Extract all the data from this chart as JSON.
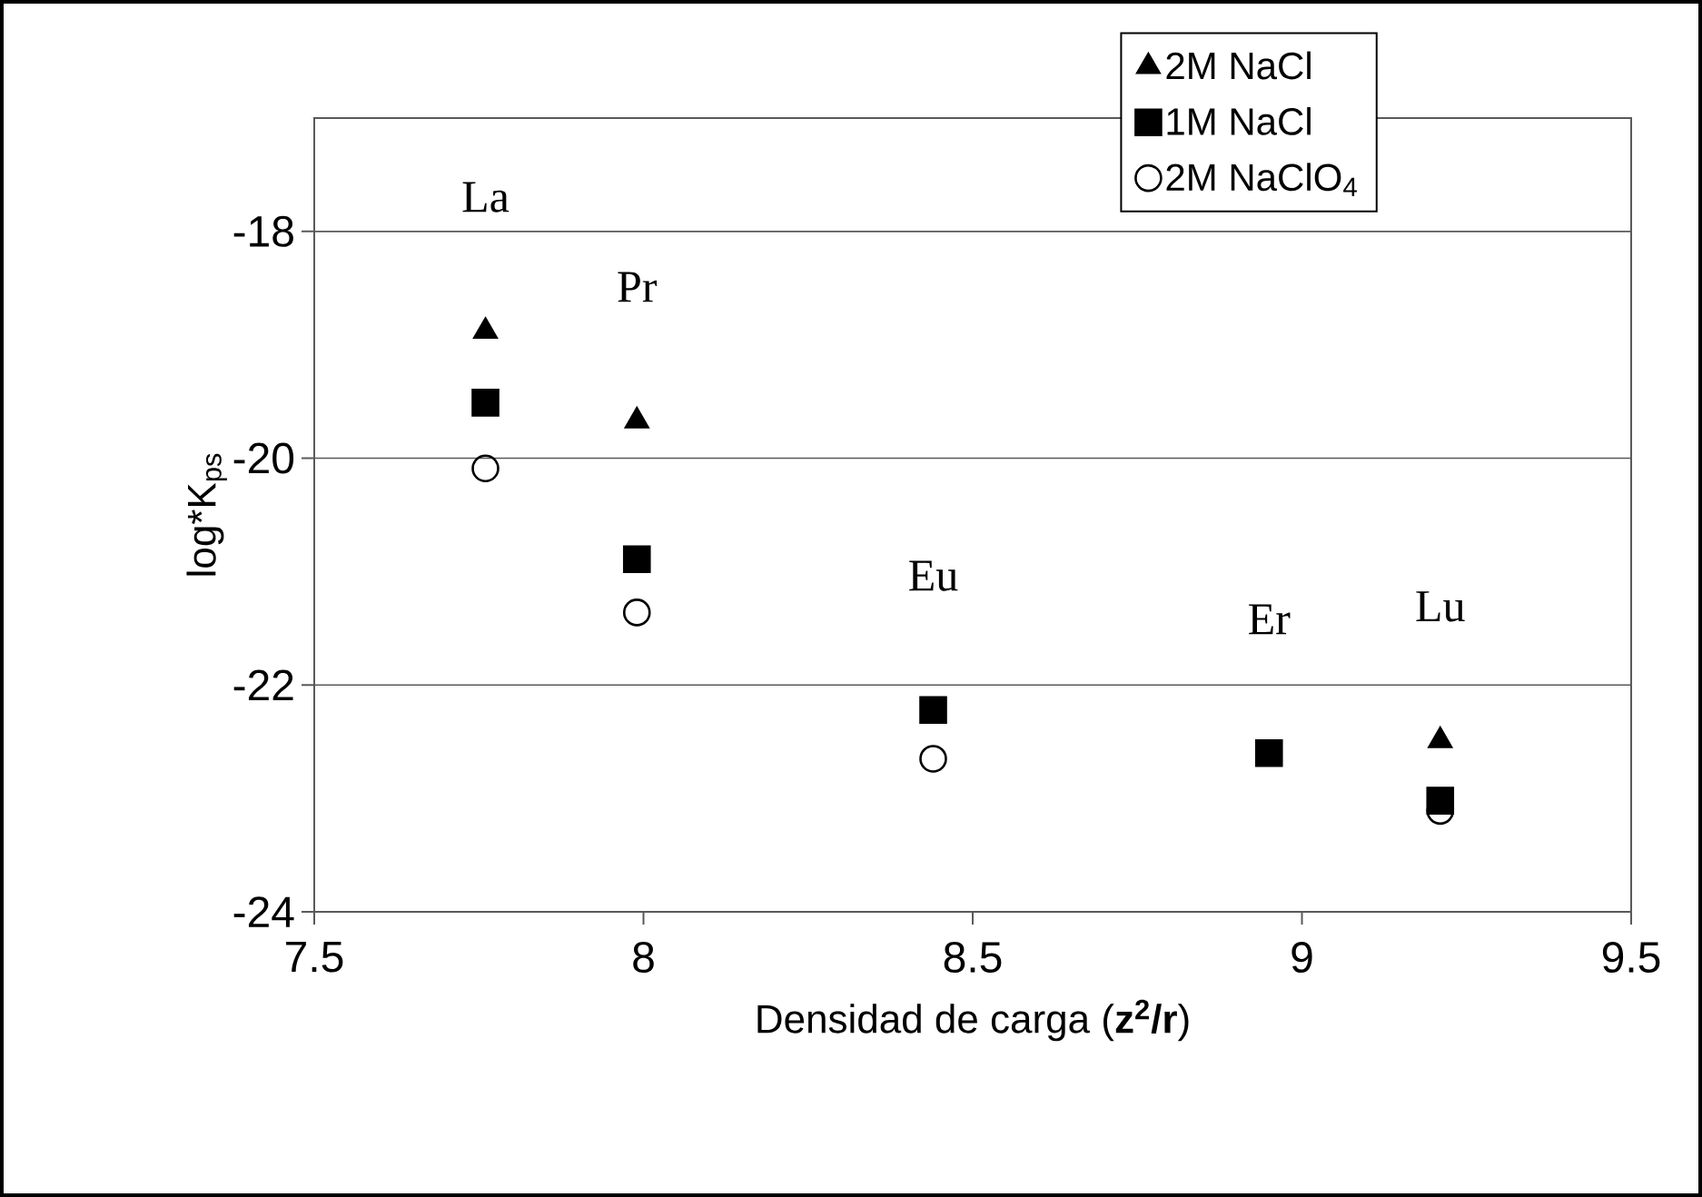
{
  "chart_data": {
    "type": "scatter",
    "xlabel": "Densidad de carga (**z$^{2}$/r**)",
    "ylabel": "log*K$_{ps}$",
    "x": [
      7.76,
      7.99,
      8.44,
      8.95,
      9.21
    ],
    "series": [
      {
        "name": "2M NaCl",
        "color": "#000000",
        "marker": "triangle",
        "values": [
          -18.88,
          -19.67,
          null,
          null,
          -22.49
        ]
      },
      {
        "name": "1M NaCl",
        "color": "#000000",
        "marker": "square",
        "values": [
          -19.51,
          -20.89,
          -22.22,
          -22.6,
          -23.02
        ]
      },
      {
        "name": "2M NaClO$_{4}$",
        "color": "#000000",
        "marker": "circle",
        "values": [
          -20.09,
          -21.36,
          -22.65,
          null,
          -23.11
        ]
      }
    ],
    "annotations": [
      {
        "text": "La",
        "x": 7.76,
        "y": -18.88
      },
      {
        "text": "Pr",
        "x": 7.99,
        "y": -19.67
      },
      {
        "text": "Eu",
        "x": 8.44,
        "y": -22.22
      },
      {
        "text": "Er",
        "x": 8.95,
        "y": -22.6
      },
      {
        "text": "Lu",
        "x": 9.21,
        "y": -22.49
      }
    ],
    "xlim": [
      7.5,
      9.5
    ],
    "xticks": [
      7.5,
      8,
      8.5,
      9,
      9.5
    ],
    "ylim": [
      -24,
      -17
    ],
    "yticks": [
      -24,
      -22,
      -20,
      -18
    ],
    "grid": "y",
    "legend": "top right"
  }
}
